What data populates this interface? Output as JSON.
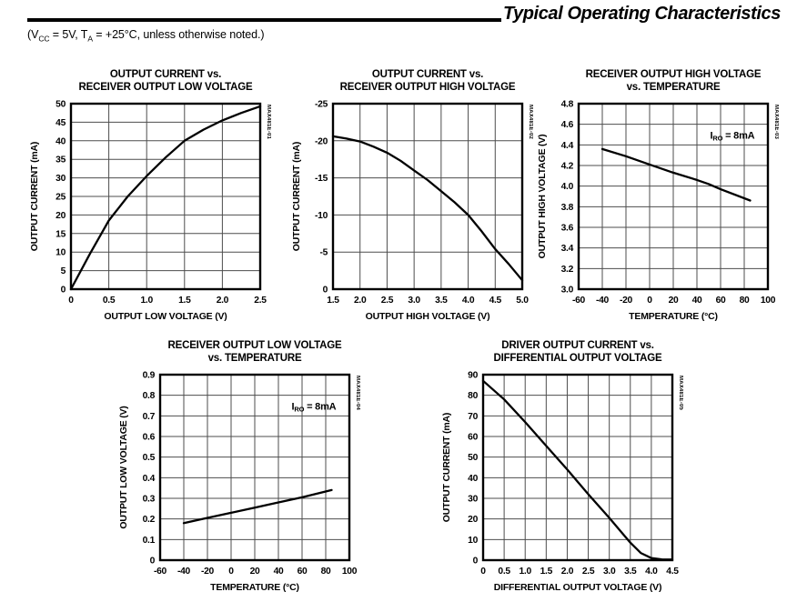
{
  "header": {
    "title": "Typical Operating Characteristics",
    "conditions_parts": [
      {
        "text": "(V"
      },
      {
        "sub": "CC"
      },
      {
        "text": " = 5V, T"
      },
      {
        "sub": "A"
      },
      {
        "text": " = +25°C, unless otherwise noted.)"
      }
    ]
  },
  "chart_data": [
    {
      "type": "line",
      "fig_label": "MAX481E-01",
      "title_lines": [
        "OUTPUT CURRENT vs.",
        "RECEIVER OUTPUT LOW VOLTAGE"
      ],
      "xlabel": "OUTPUT LOW VOLTAGE (V)",
      "ylabel": "OUTPUT CURRENT (mA)",
      "x_left": 0,
      "x_right": 2.5,
      "y_top": 50,
      "y_bottom": 0,
      "grid": true,
      "legend": "none",
      "x_ticks": [
        [
          0,
          "0"
        ],
        [
          0.5,
          "0.5"
        ],
        [
          1,
          "1.0"
        ],
        [
          1.5,
          "1.5"
        ],
        [
          2,
          "2.0"
        ],
        [
          2.5,
          "2.5"
        ]
      ],
      "y_ticks": [
        [
          0,
          "0"
        ],
        [
          5,
          "5"
        ],
        [
          10,
          "10"
        ],
        [
          15,
          "15"
        ],
        [
          20,
          "20"
        ],
        [
          25,
          "25"
        ],
        [
          30,
          "30"
        ],
        [
          35,
          "35"
        ],
        [
          40,
          "40"
        ],
        [
          45,
          "45"
        ],
        [
          50,
          "50"
        ]
      ],
      "series": [
        {
          "name": "output current",
          "x": [
            0,
            0.25,
            0.5,
            0.75,
            1,
            1.25,
            1.5,
            1.75,
            2,
            2.25,
            2.5
          ],
          "y": [
            0,
            9.5,
            18.5,
            25,
            30.5,
            35.5,
            40,
            43,
            45.5,
            47.5,
            49.3
          ]
        }
      ],
      "annotation_parts": null
    },
    {
      "type": "line",
      "fig_label": "MAX481E-02",
      "title_lines": [
        "OUTPUT CURRENT vs.",
        "RECEIVER OUTPUT HIGH VOLTAGE"
      ],
      "xlabel": "OUTPUT HIGH VOLTAGE (V)",
      "ylabel": "OUTPUT CURRENT (mA)",
      "x_left": 1.5,
      "x_right": 5,
      "y_top": -25,
      "y_bottom": 0,
      "grid": true,
      "legend": "none",
      "x_ticks": [
        [
          1.5,
          "1.5"
        ],
        [
          2,
          "2.0"
        ],
        [
          2.5,
          "2.5"
        ],
        [
          3,
          "3.0"
        ],
        [
          3.5,
          "3.5"
        ],
        [
          4,
          "4.0"
        ],
        [
          4.5,
          "4.5"
        ],
        [
          5,
          "5.0"
        ]
      ],
      "y_ticks": [
        [
          0,
          "0"
        ],
        [
          -5,
          "-5"
        ],
        [
          -10,
          "-10"
        ],
        [
          -15,
          "-15"
        ],
        [
          -20,
          "-20"
        ],
        [
          -25,
          "-25"
        ]
      ],
      "series": [
        {
          "name": "output current",
          "x": [
            1.5,
            1.75,
            2,
            2.25,
            2.5,
            2.75,
            3,
            3.25,
            3.5,
            3.75,
            4,
            4.25,
            4.5,
            4.75,
            5
          ],
          "y": [
            -20.6,
            -20.3,
            -19.9,
            -19.2,
            -18.4,
            -17.3,
            -16,
            -14.7,
            -13.2,
            -11.7,
            -10,
            -7.8,
            -5.4,
            -3.4,
            -1.2
          ]
        }
      ],
      "annotation_parts": null
    },
    {
      "type": "line",
      "fig_label": "MAX481E-03",
      "title_lines": [
        "RECEIVER OUTPUT HIGH VOLTAGE",
        "vs. TEMPERATURE"
      ],
      "xlabel": "TEMPERATURE (°C)",
      "ylabel": "OUTPUT HIGH VOLTAGE (V)",
      "x_left": -60,
      "x_right": 100,
      "y_top": 4.8,
      "y_bottom": 3.0,
      "grid": true,
      "legend": "none",
      "x_ticks": [
        [
          -60,
          "-60"
        ],
        [
          -40,
          "-40"
        ],
        [
          -20,
          "-20"
        ],
        [
          0,
          "0"
        ],
        [
          20,
          "20"
        ],
        [
          40,
          "40"
        ],
        [
          60,
          "60"
        ],
        [
          80,
          "80"
        ],
        [
          100,
          "100"
        ]
      ],
      "y_ticks": [
        [
          3,
          "3.0"
        ],
        [
          3.2,
          "3.2"
        ],
        [
          3.4,
          "3.4"
        ],
        [
          3.6,
          "3.6"
        ],
        [
          3.8,
          "3.8"
        ],
        [
          4,
          "4.0"
        ],
        [
          4.2,
          "4.2"
        ],
        [
          4.4,
          "4.4"
        ],
        [
          4.6,
          "4.6"
        ],
        [
          4.8,
          "4.8"
        ]
      ],
      "series": [
        {
          "name": "output high voltage",
          "x": [
            -40,
            -20,
            0,
            20,
            40,
            50,
            60,
            85
          ],
          "y": [
            4.36,
            4.29,
            4.21,
            4.13,
            4.06,
            4.02,
            3.97,
            3.86
          ]
        }
      ],
      "annotation_parts": [
        {
          "text": "I"
        },
        {
          "sub": "RO"
        },
        {
          "text": " = 8mA"
        }
      ]
    },
    {
      "type": "line",
      "fig_label": "MAX481E-04",
      "title_lines": [
        "RECEIVER OUTPUT LOW VOLTAGE",
        "vs. TEMPERATURE"
      ],
      "xlabel": "TEMPERATURE (°C)",
      "ylabel": "OUTPUT LOW VOLTAGE (V)",
      "x_left": -60,
      "x_right": 100,
      "y_top": 0.9,
      "y_bottom": 0,
      "grid": true,
      "legend": "none",
      "x_ticks": [
        [
          -60,
          "-60"
        ],
        [
          -40,
          "-40"
        ],
        [
          -20,
          "-20"
        ],
        [
          0,
          "0"
        ],
        [
          20,
          "20"
        ],
        [
          40,
          "40"
        ],
        [
          60,
          "60"
        ],
        [
          80,
          "80"
        ],
        [
          100,
          "100"
        ]
      ],
      "y_ticks": [
        [
          0,
          "0"
        ],
        [
          0.1,
          "0.1"
        ],
        [
          0.2,
          "0.2"
        ],
        [
          0.3,
          "0.3"
        ],
        [
          0.4,
          "0.4"
        ],
        [
          0.5,
          "0.5"
        ],
        [
          0.6,
          "0.6"
        ],
        [
          0.7,
          "0.7"
        ],
        [
          0.8,
          "0.8"
        ],
        [
          0.9,
          "0.9"
        ]
      ],
      "series": [
        {
          "name": "output low voltage",
          "x": [
            -40,
            -20,
            0,
            20,
            40,
            60,
            85
          ],
          "y": [
            0.18,
            0.205,
            0.23,
            0.255,
            0.28,
            0.305,
            0.34
          ]
        }
      ],
      "annotation_parts": [
        {
          "text": "I"
        },
        {
          "sub": "RO"
        },
        {
          "text": " = 8mA"
        }
      ]
    },
    {
      "type": "line",
      "fig_label": "MAX481E-05",
      "title_lines": [
        "DRIVER OUTPUT CURRENT vs.",
        "DIFFERENTIAL OUTPUT VOLTAGE"
      ],
      "xlabel": "DIFFERENTIAL OUTPUT VOLTAGE (V)",
      "ylabel": "OUTPUT CURRENT (mA)",
      "x_left": 0,
      "x_right": 4.5,
      "y_top": 90,
      "y_bottom": 0,
      "grid": true,
      "legend": "none",
      "x_ticks": [
        [
          0,
          "0"
        ],
        [
          0.5,
          "0.5"
        ],
        [
          1,
          "1.0"
        ],
        [
          1.5,
          "1.5"
        ],
        [
          2,
          "2.0"
        ],
        [
          2.5,
          "2.5"
        ],
        [
          3,
          "3.0"
        ],
        [
          3.5,
          "3.5"
        ],
        [
          4,
          "4.0"
        ],
        [
          4.5,
          "4.5"
        ]
      ],
      "y_ticks": [
        [
          0,
          "0"
        ],
        [
          10,
          "10"
        ],
        [
          20,
          "20"
        ],
        [
          30,
          "30"
        ],
        [
          40,
          "40"
        ],
        [
          50,
          "50"
        ],
        [
          60,
          "60"
        ],
        [
          70,
          "70"
        ],
        [
          80,
          "80"
        ],
        [
          90,
          "90"
        ]
      ],
      "series": [
        {
          "name": "output current",
          "x": [
            0,
            0.5,
            1,
            1.5,
            2,
            2.5,
            3,
            3.25,
            3.5,
            3.75,
            4,
            4.25,
            4.5
          ],
          "y": [
            87,
            78,
            67,
            55.5,
            44,
            32,
            20.5,
            14.5,
            8.5,
            3.5,
            1,
            0.4,
            0.3
          ]
        }
      ],
      "annotation_parts": null
    }
  ],
  "colors": {
    "ink": "#000000",
    "grid": "#4d4d4d",
    "background": "#ffffff"
  }
}
